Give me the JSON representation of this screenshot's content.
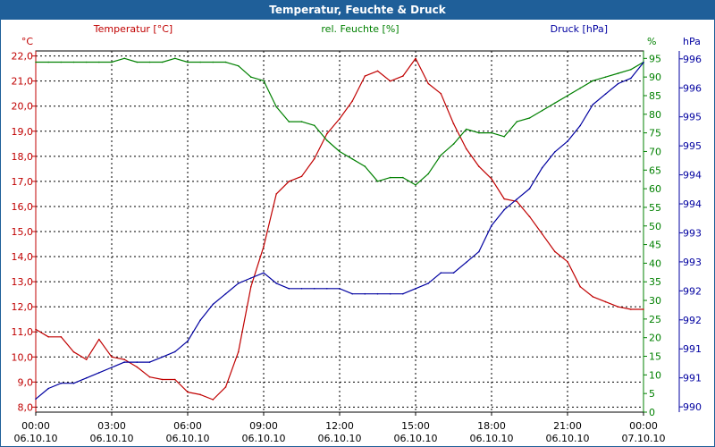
{
  "window_title": "Temperatur, Feuchte & Druck",
  "colors": {
    "temperature": "#c00000",
    "humidity": "#008000",
    "pressure": "#0000a0",
    "titlebar": "#1f5f99"
  },
  "chart_data": {
    "type": "line",
    "title": "Temperatur, Feuchte & Druck",
    "x": [
      "00:00",
      "00:30",
      "01:00",
      "01:30",
      "02:00",
      "02:30",
      "03:00",
      "03:30",
      "04:00",
      "04:30",
      "05:00",
      "05:30",
      "06:00",
      "06:30",
      "07:00",
      "07:30",
      "08:00",
      "08:30",
      "09:00",
      "09:30",
      "10:00",
      "10:30",
      "11:00",
      "11:30",
      "12:00",
      "12:30",
      "13:00",
      "13:30",
      "14:00",
      "14:30",
      "15:00",
      "15:30",
      "16:00",
      "16:30",
      "17:00",
      "17:30",
      "18:00",
      "18:30",
      "19:00",
      "19:30",
      "20:00",
      "20:30",
      "21:00",
      "21:30",
      "22:00",
      "22:30",
      "23:00",
      "23:30",
      "00:00"
    ],
    "xticks": [
      "00:00",
      "03:00",
      "06:00",
      "09:00",
      "12:00",
      "15:00",
      "18:00",
      "21:00",
      "00:00"
    ],
    "xtick_dates": [
      "06.10.10",
      "06.10.10",
      "06.10.10",
      "06.10.10",
      "06.10.10",
      "06.10.10",
      "06.10.10",
      "06.10.10",
      "07.10.10"
    ],
    "axes": {
      "temperature": {
        "label": "Temperatur [°C]",
        "unit": "°C",
        "range": [
          7.8,
          22.2
        ],
        "ticks": [
          "22,0",
          "21,0",
          "20,0",
          "19,0",
          "18,0",
          "17,0",
          "16,0",
          "15,0",
          "14,0",
          "13,0",
          "12,0",
          "11,0",
          "10,0",
          "9,0",
          "8,0"
        ]
      },
      "humidity": {
        "label": "rel. Feuchte [%]",
        "unit": "%",
        "range": [
          0,
          97
        ],
        "ticks": [
          "95",
          "90",
          "85",
          "80",
          "75",
          "70",
          "65",
          "60",
          "55",
          "50",
          "45",
          "40",
          "35",
          "30",
          "25",
          "20",
          "15",
          "10",
          "5",
          "0"
        ]
      },
      "pressure": {
        "label": "Druck [hPa]",
        "unit": "hPa",
        "range": [
          989.85,
          996.72
        ],
        "ticks": [
          "996",
          "996",
          "995",
          "995",
          "994",
          "994",
          "993",
          "993",
          "992",
          "992",
          "991",
          "991",
          "990"
        ]
      }
    },
    "series": [
      {
        "name": "Temperatur",
        "axis": "temperature",
        "values": [
          11.1,
          10.8,
          10.8,
          10.2,
          9.9,
          10.7,
          10.0,
          9.9,
          9.6,
          9.2,
          9.1,
          9.1,
          8.6,
          8.5,
          8.3,
          8.8,
          10.2,
          12.8,
          14.4,
          16.5,
          17.0,
          17.2,
          17.9,
          18.9,
          19.5,
          20.2,
          21.2,
          21.4,
          21.0,
          21.2,
          21.9,
          20.9,
          20.5,
          19.3,
          18.3,
          17.6,
          17.1,
          16.3,
          16.2,
          15.6,
          14.9,
          14.2,
          13.8,
          12.8,
          12.4,
          12.2,
          12.0,
          11.9,
          11.9
        ]
      },
      {
        "name": "rel. Feuchte",
        "axis": "humidity",
        "values": [
          94,
          94,
          94,
          94,
          94,
          94,
          94,
          95,
          94,
          94,
          94,
          95,
          94,
          94,
          94,
          94,
          93,
          90,
          89,
          82,
          78,
          78,
          77,
          73,
          70,
          68,
          66,
          62,
          63,
          63,
          61,
          64,
          69,
          72,
          76,
          75,
          75,
          74,
          78,
          79,
          81,
          83,
          85,
          87,
          89,
          90,
          91,
          92,
          94
        ]
      },
      {
        "name": "Druck",
        "axis": "pressure",
        "values": [
          990.1,
          990.3,
          990.4,
          990.4,
          990.5,
          990.6,
          990.7,
          990.8,
          990.8,
          990.8,
          990.9,
          991.0,
          991.2,
          991.6,
          991.9,
          992.1,
          992.3,
          992.4,
          992.5,
          992.3,
          992.2,
          992.2,
          992.2,
          992.2,
          992.2,
          992.1,
          992.1,
          992.1,
          992.1,
          992.1,
          992.2,
          992.3,
          992.5,
          992.5,
          992.7,
          992.9,
          993.4,
          993.7,
          993.9,
          994.1,
          994.5,
          994.8,
          995.0,
          995.3,
          995.7,
          995.9,
          996.1,
          996.2,
          996.5
        ]
      }
    ]
  }
}
